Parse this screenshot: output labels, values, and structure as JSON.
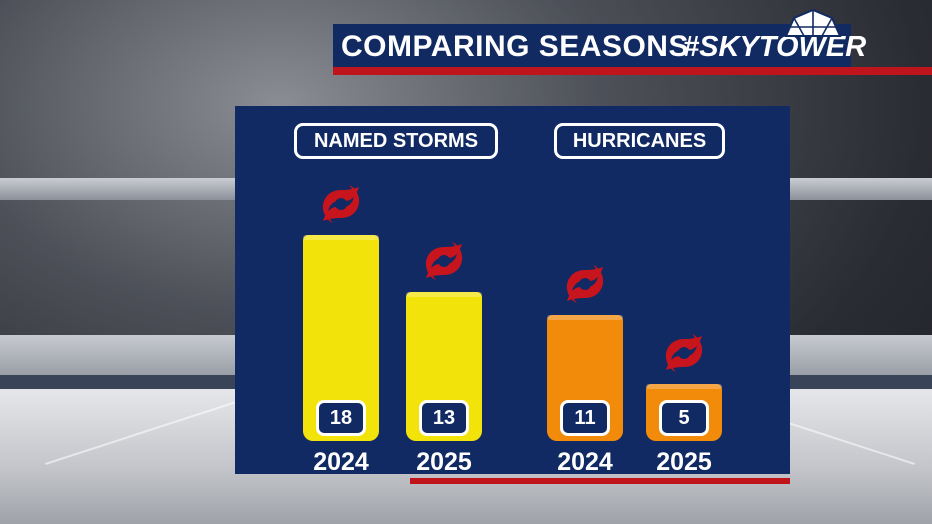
{
  "header": {
    "title": "COMPARING SEASONS",
    "brand": "#SKYTOWER"
  },
  "categories": [
    {
      "label": "NAMED STORMS",
      "color": "#f2e30a"
    },
    {
      "label": "HURRICANES",
      "color": "#f28a0a"
    }
  ],
  "icons": {
    "bar_icon": "hurricane-symbol-icon",
    "logo_icon": "skytower-dome-icon"
  },
  "colors": {
    "panel": "#112a64",
    "accent_red": "#c0141c"
  },
  "chart_data": {
    "type": "bar",
    "title": "COMPARING SEASONS",
    "categories": [
      "2024",
      "2025",
      "2024",
      "2025"
    ],
    "groups": [
      "NAMED STORMS",
      "NAMED STORMS",
      "HURRICANES",
      "HURRICANES"
    ],
    "series": [
      {
        "values": [
          18,
          13,
          11,
          5
        ]
      }
    ],
    "ylim": [
      0,
      18
    ],
    "grid": false,
    "legend": "none"
  }
}
